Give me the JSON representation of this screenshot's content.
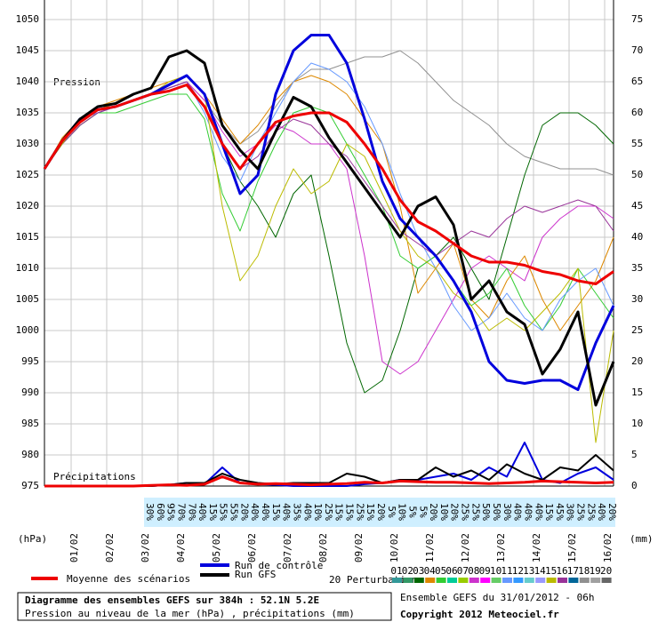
{
  "chart_data": {
    "type": "line",
    "ylabel": "Pression",
    "y2label": "Précipitations",
    "yunit": "(hPa)",
    "y2unit": "(mm)",
    "xlim": [
      0,
      384
    ],
    "xticks": [
      {
        "value": 18,
        "label": "01/02"
      },
      {
        "value": 42,
        "label": "02/02"
      },
      {
        "value": 66,
        "label": "03/02"
      },
      {
        "value": 90,
        "label": "04/02"
      },
      {
        "value": 114,
        "label": "05/02"
      },
      {
        "value": 138,
        "label": "06/02"
      },
      {
        "value": 162,
        "label": "07/02"
      },
      {
        "value": 186,
        "label": "08/02"
      },
      {
        "value": 210,
        "label": "09/02"
      },
      {
        "value": 234,
        "label": "10/02"
      },
      {
        "value": 258,
        "label": "11/02"
      },
      {
        "value": 282,
        "label": "12/02"
      },
      {
        "value": 306,
        "label": "13/02"
      },
      {
        "value": 330,
        "label": "14/02"
      },
      {
        "value": 354,
        "label": "15/02"
      },
      {
        "value": 378,
        "label": "16/02"
      }
    ],
    "ylim": [
      975,
      1050
    ],
    "yticks": [
      975,
      980,
      985,
      990,
      995,
      1000,
      1005,
      1010,
      1015,
      1020,
      1025,
      1030,
      1035,
      1040,
      1045,
      1050
    ],
    "y2lim": [
      0,
      75
    ],
    "y2ticks": [
      0,
      5,
      10,
      15,
      20,
      25,
      30,
      35,
      40,
      45,
      50,
      55,
      60,
      65,
      70,
      75
    ],
    "grid": true,
    "x": [
      0,
      12,
      24,
      36,
      48,
      60,
      72,
      84,
      96,
      108,
      120,
      132,
      144,
      156,
      168,
      180,
      192,
      204,
      216,
      228,
      240,
      252,
      264,
      276,
      288,
      300,
      312,
      324,
      336,
      348,
      360,
      372,
      384
    ],
    "series": [
      {
        "color": "#909090",
        "values": [
          1026,
          1030,
          1033,
          1035,
          1036,
          1037,
          1038,
          1039,
          1040,
          1037,
          1033,
          1030,
          1032,
          1036,
          1040,
          1042,
          1042,
          1043,
          1044,
          1044,
          1045,
          1043,
          1040,
          1037,
          1035,
          1033,
          1030,
          1028,
          1027,
          1026,
          1026,
          1026,
          1025
        ]
      },
      {
        "color": "#006600",
        "values": [
          1026,
          1030,
          1033,
          1035,
          1036,
          1037,
          1038,
          1039,
          1040,
          1036,
          1030,
          1024,
          1020,
          1015,
          1022,
          1025,
          1012,
          998,
          990,
          992,
          1000,
          1010,
          1012,
          1015,
          1010,
          1005,
          1015,
          1025,
          1033,
          1035,
          1035,
          1033,
          1030
        ]
      },
      {
        "color": "#cc33cc",
        "values": [
          1026,
          1030,
          1034,
          1035,
          1036,
          1037,
          1038,
          1039,
          1040,
          1037,
          1032,
          1028,
          1030,
          1033,
          1032,
          1030,
          1030,
          1026,
          1012,
          995,
          993,
          995,
          1000,
          1005,
          1010,
          1012,
          1010,
          1008,
          1015,
          1018,
          1020,
          1020,
          1018
        ]
      },
      {
        "color": "#dd8800",
        "values": [
          1026,
          1031,
          1034,
          1036,
          1037,
          1038,
          1039,
          1040,
          1041,
          1038,
          1034,
          1030,
          1033,
          1037,
          1040,
          1041,
          1040,
          1038,
          1034,
          1030,
          1020,
          1006,
          1010,
          1014,
          1005,
          1002,
          1008,
          1012,
          1005,
          1000,
          1004,
          1008,
          1015
        ]
      },
      {
        "color": "#33cc33",
        "values": [
          1026,
          1030,
          1033,
          1035,
          1035,
          1036,
          1037,
          1038,
          1038,
          1034,
          1022,
          1016,
          1024,
          1030,
          1035,
          1036,
          1035,
          1030,
          1025,
          1020,
          1012,
          1010,
          1012,
          1008,
          1004,
          1006,
          1010,
          1004,
          1000,
          1004,
          1010,
          1006,
          1002
        ]
      },
      {
        "color": "#6699ff",
        "values": [
          1026,
          1030,
          1034,
          1035,
          1036,
          1037,
          1038,
          1039,
          1040,
          1035,
          1028,
          1024,
          1030,
          1035,
          1040,
          1043,
          1042,
          1040,
          1036,
          1030,
          1022,
          1015,
          1010,
          1004,
          1000,
          1002,
          1006,
          1002,
          1000,
          1005,
          1008,
          1010,
          1004
        ]
      },
      {
        "color": "#993399",
        "values": [
          1026,
          1030,
          1033,
          1035,
          1036,
          1037,
          1038,
          1039,
          1040,
          1036,
          1030,
          1026,
          1028,
          1032,
          1034,
          1033,
          1030,
          1028,
          1024,
          1020,
          1016,
          1014,
          1012,
          1014,
          1016,
          1015,
          1018,
          1020,
          1019,
          1020,
          1021,
          1020,
          1016
        ]
      },
      {
        "color": "#bbbb00",
        "values": [
          1026,
          1030,
          1034,
          1036,
          1036,
          1037,
          1038,
          1040,
          1041,
          1038,
          1020,
          1008,
          1012,
          1020,
          1026,
          1022,
          1024,
          1030,
          1028,
          1022,
          1016,
          1012,
          1010,
          1006,
          1004,
          1000,
          1002,
          1000,
          1003,
          1006,
          1010,
          982,
          1000
        ]
      },
      {
        "name": "Run de contrôle",
        "color": "#0000dd",
        "width": 3,
        "values": [
          1026,
          1030.5,
          1034,
          1035.5,
          1036,
          1037,
          1038,
          1039.5,
          1041,
          1038,
          1030,
          1022,
          1025,
          1038,
          1045,
          1047.5,
          1047.5,
          1043,
          1034,
          1024,
          1018,
          1015,
          1012,
          1008,
          1003,
          995,
          992,
          991.5,
          992,
          992,
          990.5,
          998,
          1004
        ]
      },
      {
        "name": "Run GFS",
        "color": "#000000",
        "width": 3,
        "values": [
          1026,
          1030.5,
          1034,
          1036,
          1036.5,
          1038,
          1039,
          1044,
          1045,
          1043,
          1033,
          1029,
          1026,
          1032,
          1037.5,
          1036,
          1031,
          1027,
          1023,
          1019,
          1015,
          1020,
          1021.5,
          1017,
          1005,
          1008,
          1003,
          1001,
          993,
          997,
          1003,
          988,
          995
        ]
      },
      {
        "name": "Moyenne des scénarios",
        "color": "#ee0000",
        "width": 3,
        "values": [
          1026,
          1030.5,
          1033.5,
          1035.5,
          1036,
          1037,
          1038,
          1038.5,
          1039.5,
          1036,
          1030,
          1026,
          1030,
          1033.5,
          1034.5,
          1035,
          1035,
          1033.5,
          1030,
          1026,
          1021,
          1017.5,
          1016,
          1014,
          1012,
          1011,
          1011,
          1010.5,
          1009.5,
          1009,
          1008,
          1007.5,
          1009.5
        ]
      },
      {
        "axis": "y2",
        "color": "#0000dd",
        "width": 2,
        "values": [
          0,
          0,
          0,
          0,
          0,
          0,
          0,
          0.2,
          0.5,
          0.3,
          3,
          0.5,
          0.3,
          0.2,
          0,
          0,
          0,
          0,
          0.3,
          0.5,
          1,
          1,
          1.5,
          2,
          1,
          3,
          1.5,
          7,
          1,
          0.5,
          2,
          3,
          1
        ]
      },
      {
        "axis": "y2",
        "color": "#000000",
        "width": 2,
        "values": [
          0,
          0,
          0,
          0,
          0,
          0,
          0,
          0.2,
          0.5,
          0.5,
          2,
          1,
          0.5,
          0.3,
          0.5,
          0.5,
          0.5,
          2,
          1.5,
          0.5,
          1,
          1,
          3,
          1.5,
          2.5,
          1,
          3.5,
          2,
          1,
          3,
          2.5,
          5,
          2.5
        ]
      },
      {
        "axis": "y2",
        "color": "#ee0000",
        "width": 3,
        "values": [
          0,
          0,
          0,
          0,
          0,
          0,
          0.1,
          0.2,
          0.1,
          0.3,
          1.5,
          0.5,
          0.3,
          0.4,
          0.3,
          0.2,
          0.3,
          0.4,
          0.6,
          0.5,
          0.8,
          0.7,
          0.6,
          0.6,
          0.5,
          0.4,
          0.5,
          0.6,
          0.8,
          0.7,
          0.6,
          0.5,
          0.6
        ]
      }
    ],
    "probabilities": [
      "30%",
      "60%",
      "95%",
      "70%",
      "70%",
      "40%",
      "15%",
      "55%",
      "55%",
      "20%",
      "40%",
      "40%",
      "15%",
      "40%",
      "35%",
      "40%",
      "10%",
      "25%",
      "15%",
      "15%",
      "25%",
      "15%",
      "20%",
      "5%",
      "10%",
      "5%",
      "5%",
      "20%",
      "10%",
      "20%",
      "25%",
      "25%",
      "50%",
      "50%",
      "30%",
      "40%",
      "40%",
      "40%",
      "15%",
      "45%",
      "30%",
      "25%",
      "25%",
      "40%",
      "20%"
    ],
    "perturbation_legend": {
      "title": "20 Perturbations",
      "labels": [
        "01",
        "02",
        "03",
        "04",
        "05",
        "06",
        "07",
        "08",
        "09",
        "10",
        "11",
        "12",
        "13",
        "14",
        "15",
        "16",
        "17",
        "18",
        "19",
        "20"
      ],
      "colors": [
        "#339999",
        "#339966",
        "#006600",
        "#dd8800",
        "#33cc33",
        "#00cc99",
        "#99cc00",
        "#cc33cc",
        "#ff00ff",
        "#66cc66",
        "#6699ff",
        "#3399ff",
        "#66cccc",
        "#9999ff",
        "#bbbb00",
        "#993399",
        "#006699",
        "#909090",
        "#a0a0a0",
        "#666666"
      ]
    },
    "footer": {
      "line1": "Diagramme des ensembles GEFS sur 384h : 52.1N 5.2E",
      "line2": "Pression au niveau de la mer (hPa) , précipitations (mm)",
      "run": "Ensemble GEFS du 31/01/2012 - 06h",
      "copyright": "Copyright 2012 Meteociel.fr"
    }
  }
}
